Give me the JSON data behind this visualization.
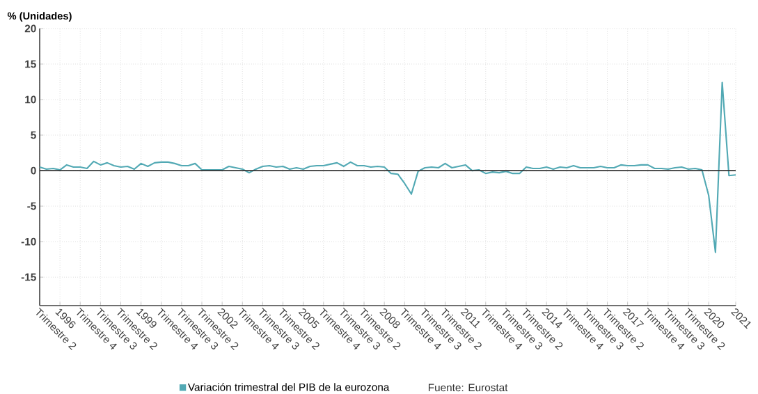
{
  "chart_data": {
    "type": "line",
    "ylabel": "% (Unidades)",
    "categories": [
      "Trimestre 2",
      null,
      null,
      "1996",
      null,
      null,
      "Trimestre 4",
      null,
      null,
      "Trimestre 3",
      null,
      null,
      "Trimestre 2",
      null,
      null,
      "1999",
      null,
      null,
      "Trimestre 4",
      null,
      null,
      "Trimestre 3",
      null,
      null,
      "Trimestre 2",
      null,
      null,
      "2002",
      null,
      null,
      "Trimestre 4",
      null,
      null,
      "Trimestre 3",
      null,
      null,
      "Trimestre 2",
      null,
      null,
      "2005",
      null,
      null,
      "Trimestre 4",
      null,
      null,
      "Trimestre 3",
      null,
      null,
      "Trimestre 2",
      null,
      null,
      "2008",
      null,
      null,
      "Trimestre 4",
      null,
      null,
      "Trimestre 3",
      null,
      null,
      "Trimestre 2",
      null,
      null,
      "2011",
      null,
      null,
      "Trimestre 4",
      null,
      null,
      "Trimestre 3",
      null,
      null,
      "Trimestre 2",
      null,
      null,
      "2014",
      null,
      null,
      "Trimestre 4",
      null,
      null,
      "Trimestre 3",
      null,
      null,
      "Trimestre 2",
      null,
      null,
      "2017",
      null,
      null,
      "Trimestre 4",
      null,
      null,
      "Trimestre 3",
      null,
      null,
      "Trimestre 2",
      null,
      null,
      "2020",
      null,
      null,
      null,
      "2021"
    ],
    "series": [
      {
        "name": "Variación trimestral del PIB de la eurozona",
        "color": "#52a9b4",
        "values": [
          0.5,
          0.2,
          0.3,
          0.1,
          0.8,
          0.5,
          0.5,
          0.3,
          1.3,
          0.8,
          1.1,
          0.7,
          0.5,
          0.6,
          0.2,
          1.0,
          0.6,
          1.1,
          1.2,
          1.2,
          1.0,
          0.7,
          0.7,
          1.0,
          0.1,
          0.1,
          0.1,
          0.1,
          0.6,
          0.4,
          0.2,
          -0.3,
          0.2,
          0.6,
          0.7,
          0.5,
          0.6,
          0.2,
          0.4,
          0.2,
          0.6,
          0.7,
          0.7,
          0.9,
          1.1,
          0.6,
          1.2,
          0.7,
          0.7,
          0.5,
          0.6,
          0.5,
          -0.4,
          -0.5,
          -1.8,
          -3.3,
          -0.1,
          0.4,
          0.5,
          0.4,
          1.0,
          0.4,
          0.6,
          0.8,
          0.0,
          0.1,
          -0.4,
          -0.2,
          -0.3,
          -0.1,
          -0.4,
          -0.4,
          0.5,
          0.3,
          0.3,
          0.5,
          0.2,
          0.5,
          0.4,
          0.7,
          0.4,
          0.4,
          0.4,
          0.6,
          0.4,
          0.4,
          0.8,
          0.7,
          0.7,
          0.8,
          0.8,
          0.3,
          0.3,
          0.2,
          0.4,
          0.5,
          0.2,
          0.3,
          0.1,
          -3.5,
          -11.5,
          12.4,
          -0.7,
          -0.6
        ]
      }
    ],
    "ylim": [
      -19,
      20
    ],
    "yticks": [
      -15,
      -10,
      -5,
      0,
      5,
      10,
      15,
      20
    ],
    "ref_lines": [
      {
        "axis": "y",
        "value": 0,
        "color": "#333333"
      }
    ],
    "grid": true,
    "legend": "bottom",
    "annotations": [
      "Fuente: Eurostat"
    ]
  }
}
